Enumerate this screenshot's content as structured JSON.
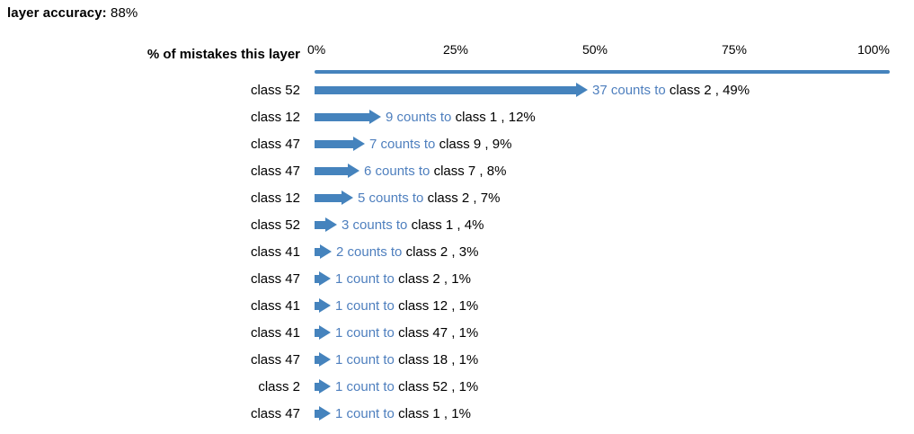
{
  "page": {
    "title_label": "layer accuracy:",
    "title_value": "88%"
  },
  "colors": {
    "accent": "#4583bd",
    "annotation_blue": "#4e7fbe",
    "text": "#000000"
  },
  "chart_data": {
    "type": "bar",
    "title": "layer accuracy: 88%",
    "axis_label": "% of mistakes this layer",
    "xlabel": "% of mistakes this layer",
    "xlim": [
      0,
      100
    ],
    "orientation": "horizontal",
    "grid": false,
    "x_ticks": [
      {
        "label": "0%",
        "pct": 0
      },
      {
        "label": "25%",
        "pct": 25
      },
      {
        "label": "50%",
        "pct": 50
      },
      {
        "label": "75%",
        "pct": 75
      },
      {
        "label": "100%",
        "pct": 100
      }
    ],
    "rows": [
      {
        "source": "class 52",
        "count": 37,
        "target": "class 2",
        "pct": 49,
        "blue_text": "37 counts to",
        "black_text": "class 2 , 49%"
      },
      {
        "source": "class 12",
        "count": 9,
        "target": "class 1",
        "pct": 12,
        "blue_text": "9 counts to",
        "black_text": "class 1 , 12%"
      },
      {
        "source": "class 47",
        "count": 7,
        "target": "class 9",
        "pct": 9,
        "blue_text": "7 counts to",
        "black_text": "class 9 , 9%"
      },
      {
        "source": "class 47",
        "count": 6,
        "target": "class 7",
        "pct": 8,
        "blue_text": "6 counts to",
        "black_text": "class 7 , 8%"
      },
      {
        "source": "class 12",
        "count": 5,
        "target": "class 2",
        "pct": 7,
        "blue_text": "5 counts to",
        "black_text": "class 2 , 7%"
      },
      {
        "source": "class 52",
        "count": 3,
        "target": "class 1",
        "pct": 4,
        "blue_text": "3 counts to",
        "black_text": "class 1 , 4%"
      },
      {
        "source": "class 41",
        "count": 2,
        "target": "class 2",
        "pct": 3,
        "blue_text": "2 counts to",
        "black_text": "class 2 , 3%"
      },
      {
        "source": "class 47",
        "count": 1,
        "target": "class 2",
        "pct": 1,
        "blue_text": "1 count to",
        "black_text": "class 2 , 1%"
      },
      {
        "source": "class 41",
        "count": 1,
        "target": "class 12",
        "pct": 1,
        "blue_text": "1 count to",
        "black_text": "class 12 , 1%"
      },
      {
        "source": "class 41",
        "count": 1,
        "target": "class 47",
        "pct": 1,
        "blue_text": "1 count to",
        "black_text": "class 47 , 1%"
      },
      {
        "source": "class 47",
        "count": 1,
        "target": "class 18",
        "pct": 1,
        "blue_text": "1 count to",
        "black_text": "class 18 , 1%"
      },
      {
        "source": "class 2",
        "count": 1,
        "target": "class 52",
        "pct": 1,
        "blue_text": "1 count to",
        "black_text": "class 52 , 1%"
      },
      {
        "source": "class 47",
        "count": 1,
        "target": "class 1",
        "pct": 1,
        "blue_text": "1 count to",
        "black_text": "class 1 , 1%"
      }
    ]
  }
}
